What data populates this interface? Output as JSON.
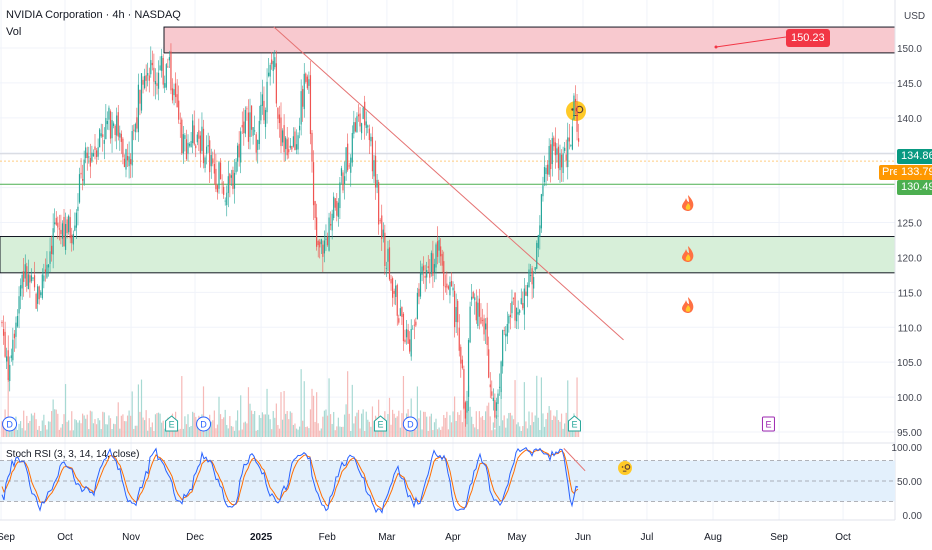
{
  "header": {
    "symbol_line": "NVIDIA Corporation · 4h · NASDAQ",
    "volume_label": "Vol",
    "currency": "USD",
    "rsi_label": "Stoch RSI (3, 3, 14, 14, close)"
  },
  "colors": {
    "up": "#26a69a",
    "down": "#ef5350",
    "vol_up": "#a7d9d3",
    "vol_down": "#f6b9b7",
    "resistance_zone": "#f8c9cf",
    "support_zone": "#d7efd9",
    "trendline": "#e57373",
    "rsi_k": "#2962ff",
    "rsi_d": "#ff6d00",
    "rsi_band": "#e3f0fc",
    "price_tag_current": "#089981",
    "price_tag_pre": "#ff9800",
    "price_tag_line": "#4caf50",
    "target_tag": "#f23645",
    "earnings": "#9c27b0",
    "dividend": "#2962ff"
  },
  "chart_data": {
    "type": "candlestick",
    "y_axis": {
      "ticks": [
        "95.00",
        "100.0",
        "105.0",
        "110.0",
        "115.0",
        "120.0",
        "125.0",
        "130.0",
        "135.0",
        "140.0",
        "145.0",
        "150.0"
      ],
      "min": 95,
      "max": 153
    },
    "x_axis": {
      "ticks": [
        "Sep",
        "Oct",
        "Nov",
        "Dec",
        "2025",
        "Feb",
        "Mar",
        "Apr",
        "May",
        "Jun",
        "Jul",
        "Aug",
        "Sep",
        "Oct"
      ]
    },
    "price_labels": {
      "current": "134.86",
      "pre_label": "Pre",
      "pre": "133.79",
      "level": "130.49",
      "target": "150.23"
    },
    "zones": [
      {
        "name": "resistance",
        "from": 149.3,
        "to": 153.0
      },
      {
        "name": "support",
        "from": 117.8,
        "to": 123.0
      }
    ],
    "horizontal_levels": [
      130.49,
      134.86,
      133.79
    ],
    "trendline": {
      "from": {
        "date": "2025-01-07",
        "price": 153.0
      },
      "to": {
        "date": "2025-06-20",
        "price": 108.2
      }
    },
    "price_path": [
      [
        "2024-08-30",
        117
      ],
      [
        "2024-09-04",
        104
      ],
      [
        "2024-09-11",
        118
      ],
      [
        "2024-09-18",
        114
      ],
      [
        "2024-09-26",
        124
      ],
      [
        "2024-10-04",
        124
      ],
      [
        "2024-10-10",
        133
      ],
      [
        "2024-10-18",
        138
      ],
      [
        "2024-10-24",
        140
      ],
      [
        "2024-10-31",
        133
      ],
      [
        "2024-11-07",
        148
      ],
      [
        "2024-11-13",
        146
      ],
      [
        "2024-11-19",
        147
      ],
      [
        "2024-11-25",
        136
      ],
      [
        "2024-12-02",
        138
      ],
      [
        "2024-12-09",
        133
      ],
      [
        "2024-12-17",
        129
      ],
      [
        "2024-12-24",
        140
      ],
      [
        "2024-12-30",
        137
      ],
      [
        "2025-01-07",
        149
      ],
      [
        "2025-01-10",
        136
      ],
      [
        "2025-01-17",
        137
      ],
      [
        "2025-01-23",
        147
      ],
      [
        "2025-01-27",
        120
      ],
      [
        "2025-01-31",
        122
      ],
      [
        "2025-02-07",
        130
      ],
      [
        "2025-02-14",
        139
      ],
      [
        "2025-02-20",
        140
      ],
      [
        "2025-02-27",
        122
      ],
      [
        "2025-03-06",
        113
      ],
      [
        "2025-03-11",
        108
      ],
      [
        "2025-03-18",
        117
      ],
      [
        "2025-03-25",
        121
      ],
      [
        "2025-04-03",
        111
      ],
      [
        "2025-04-07",
        97
      ],
      [
        "2025-04-09",
        114
      ],
      [
        "2025-04-15",
        112
      ],
      [
        "2025-04-21",
        97
      ],
      [
        "2025-04-25",
        111
      ],
      [
        "2025-05-01",
        113
      ],
      [
        "2025-05-08",
        117
      ],
      [
        "2025-05-13",
        129
      ],
      [
        "2025-05-16",
        135
      ],
      [
        "2025-05-21",
        134
      ],
      [
        "2025-05-26",
        135
      ],
      [
        "2025-05-28",
        142
      ],
      [
        "2025-05-30",
        134
      ]
    ],
    "stoch_rsi": {
      "ticks": [
        "0.00",
        "50.00",
        "100.00"
      ],
      "band": [
        20,
        80
      ],
      "k_path": [
        [
          "2024-08-30",
          20
        ],
        [
          "2024-09-09",
          85
        ],
        [
          "2024-09-20",
          15
        ],
        [
          "2024-10-01",
          80
        ],
        [
          "2024-10-11",
          25
        ],
        [
          "2024-10-22",
          95
        ],
        [
          "2024-11-01",
          10
        ],
        [
          "2024-11-12",
          90
        ],
        [
          "2024-11-25",
          20
        ],
        [
          "2024-12-05",
          85
        ],
        [
          "2024-12-17",
          10
        ],
        [
          "2024-12-27",
          90
        ],
        [
          "2025-01-08",
          15
        ],
        [
          "2025-01-20",
          95
        ],
        [
          "2025-01-30",
          10
        ],
        [
          "2025-02-11",
          90
        ],
        [
          "2025-02-25",
          5
        ],
        [
          "2025-03-06",
          70
        ],
        [
          "2025-03-14",
          15
        ],
        [
          "2025-03-24",
          95
        ],
        [
          "2025-04-04",
          5
        ],
        [
          "2025-04-14",
          80
        ],
        [
          "2025-04-22",
          10
        ],
        [
          "2025-05-02",
          95
        ],
        [
          "2025-05-15",
          90
        ],
        [
          "2025-05-22",
          95
        ],
        [
          "2025-05-26",
          20
        ],
        [
          "2025-05-30",
          50
        ]
      ],
      "trendline": {
        "from": {
          "date": "2025-05-23",
          "rsi": 98
        },
        "to": {
          "date": "2025-06-02",
          "rsi": 65
        }
      }
    },
    "events": [
      {
        "date": "2024-09-05",
        "label": "D",
        "kind": "dividend"
      },
      {
        "date": "2024-11-20",
        "label": "E",
        "kind": "earnings"
      },
      {
        "date": "2024-12-05",
        "label": "D",
        "kind": "dividend"
      },
      {
        "date": "2025-02-26",
        "label": "E",
        "kind": "earnings"
      },
      {
        "date": "2025-03-12",
        "label": "D",
        "kind": "dividend"
      },
      {
        "date": "2025-05-28",
        "label": "E",
        "kind": "earnings"
      },
      {
        "date": "2025-08-27",
        "label": "E",
        "kind": "earnings_future"
      }
    ]
  }
}
